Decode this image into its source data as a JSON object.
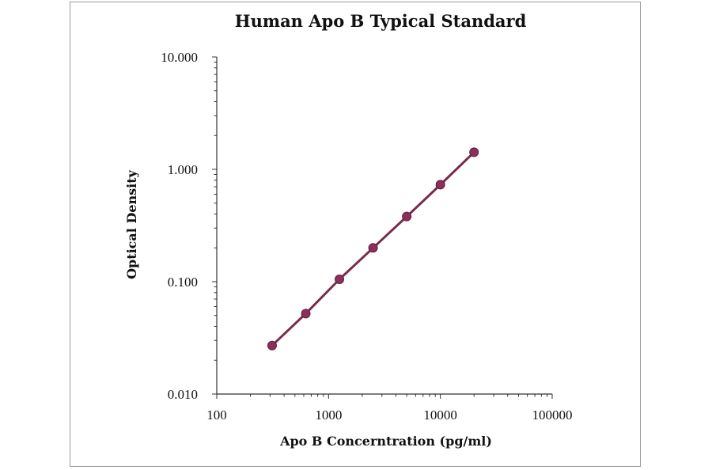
{
  "chart_data": {
    "type": "line",
    "title": "Human Apo B Typical Standard",
    "xlabel": "Apo B Concerntration (pg/ml)",
    "ylabel": "Optical Density",
    "x_scale": "log",
    "y_scale": "log",
    "xlim": [
      100,
      100000
    ],
    "ylim": [
      0.01,
      10
    ],
    "x_ticks": [
      "100",
      "1000",
      "10000",
      "100000"
    ],
    "y_ticks": [
      "0.010",
      "0.100",
      "1.000",
      "10.000"
    ],
    "grid": false,
    "legend": "none",
    "colors": {
      "series": "#7a2a4e",
      "marker": "#8c2f5a",
      "axis": "#333333"
    },
    "series": [
      {
        "x": [
          312.5,
          625,
          1250,
          2500,
          5000,
          10000,
          20000
        ],
        "y": [
          0.027,
          0.052,
          0.105,
          0.2,
          0.38,
          0.73,
          1.42
        ]
      }
    ]
  }
}
